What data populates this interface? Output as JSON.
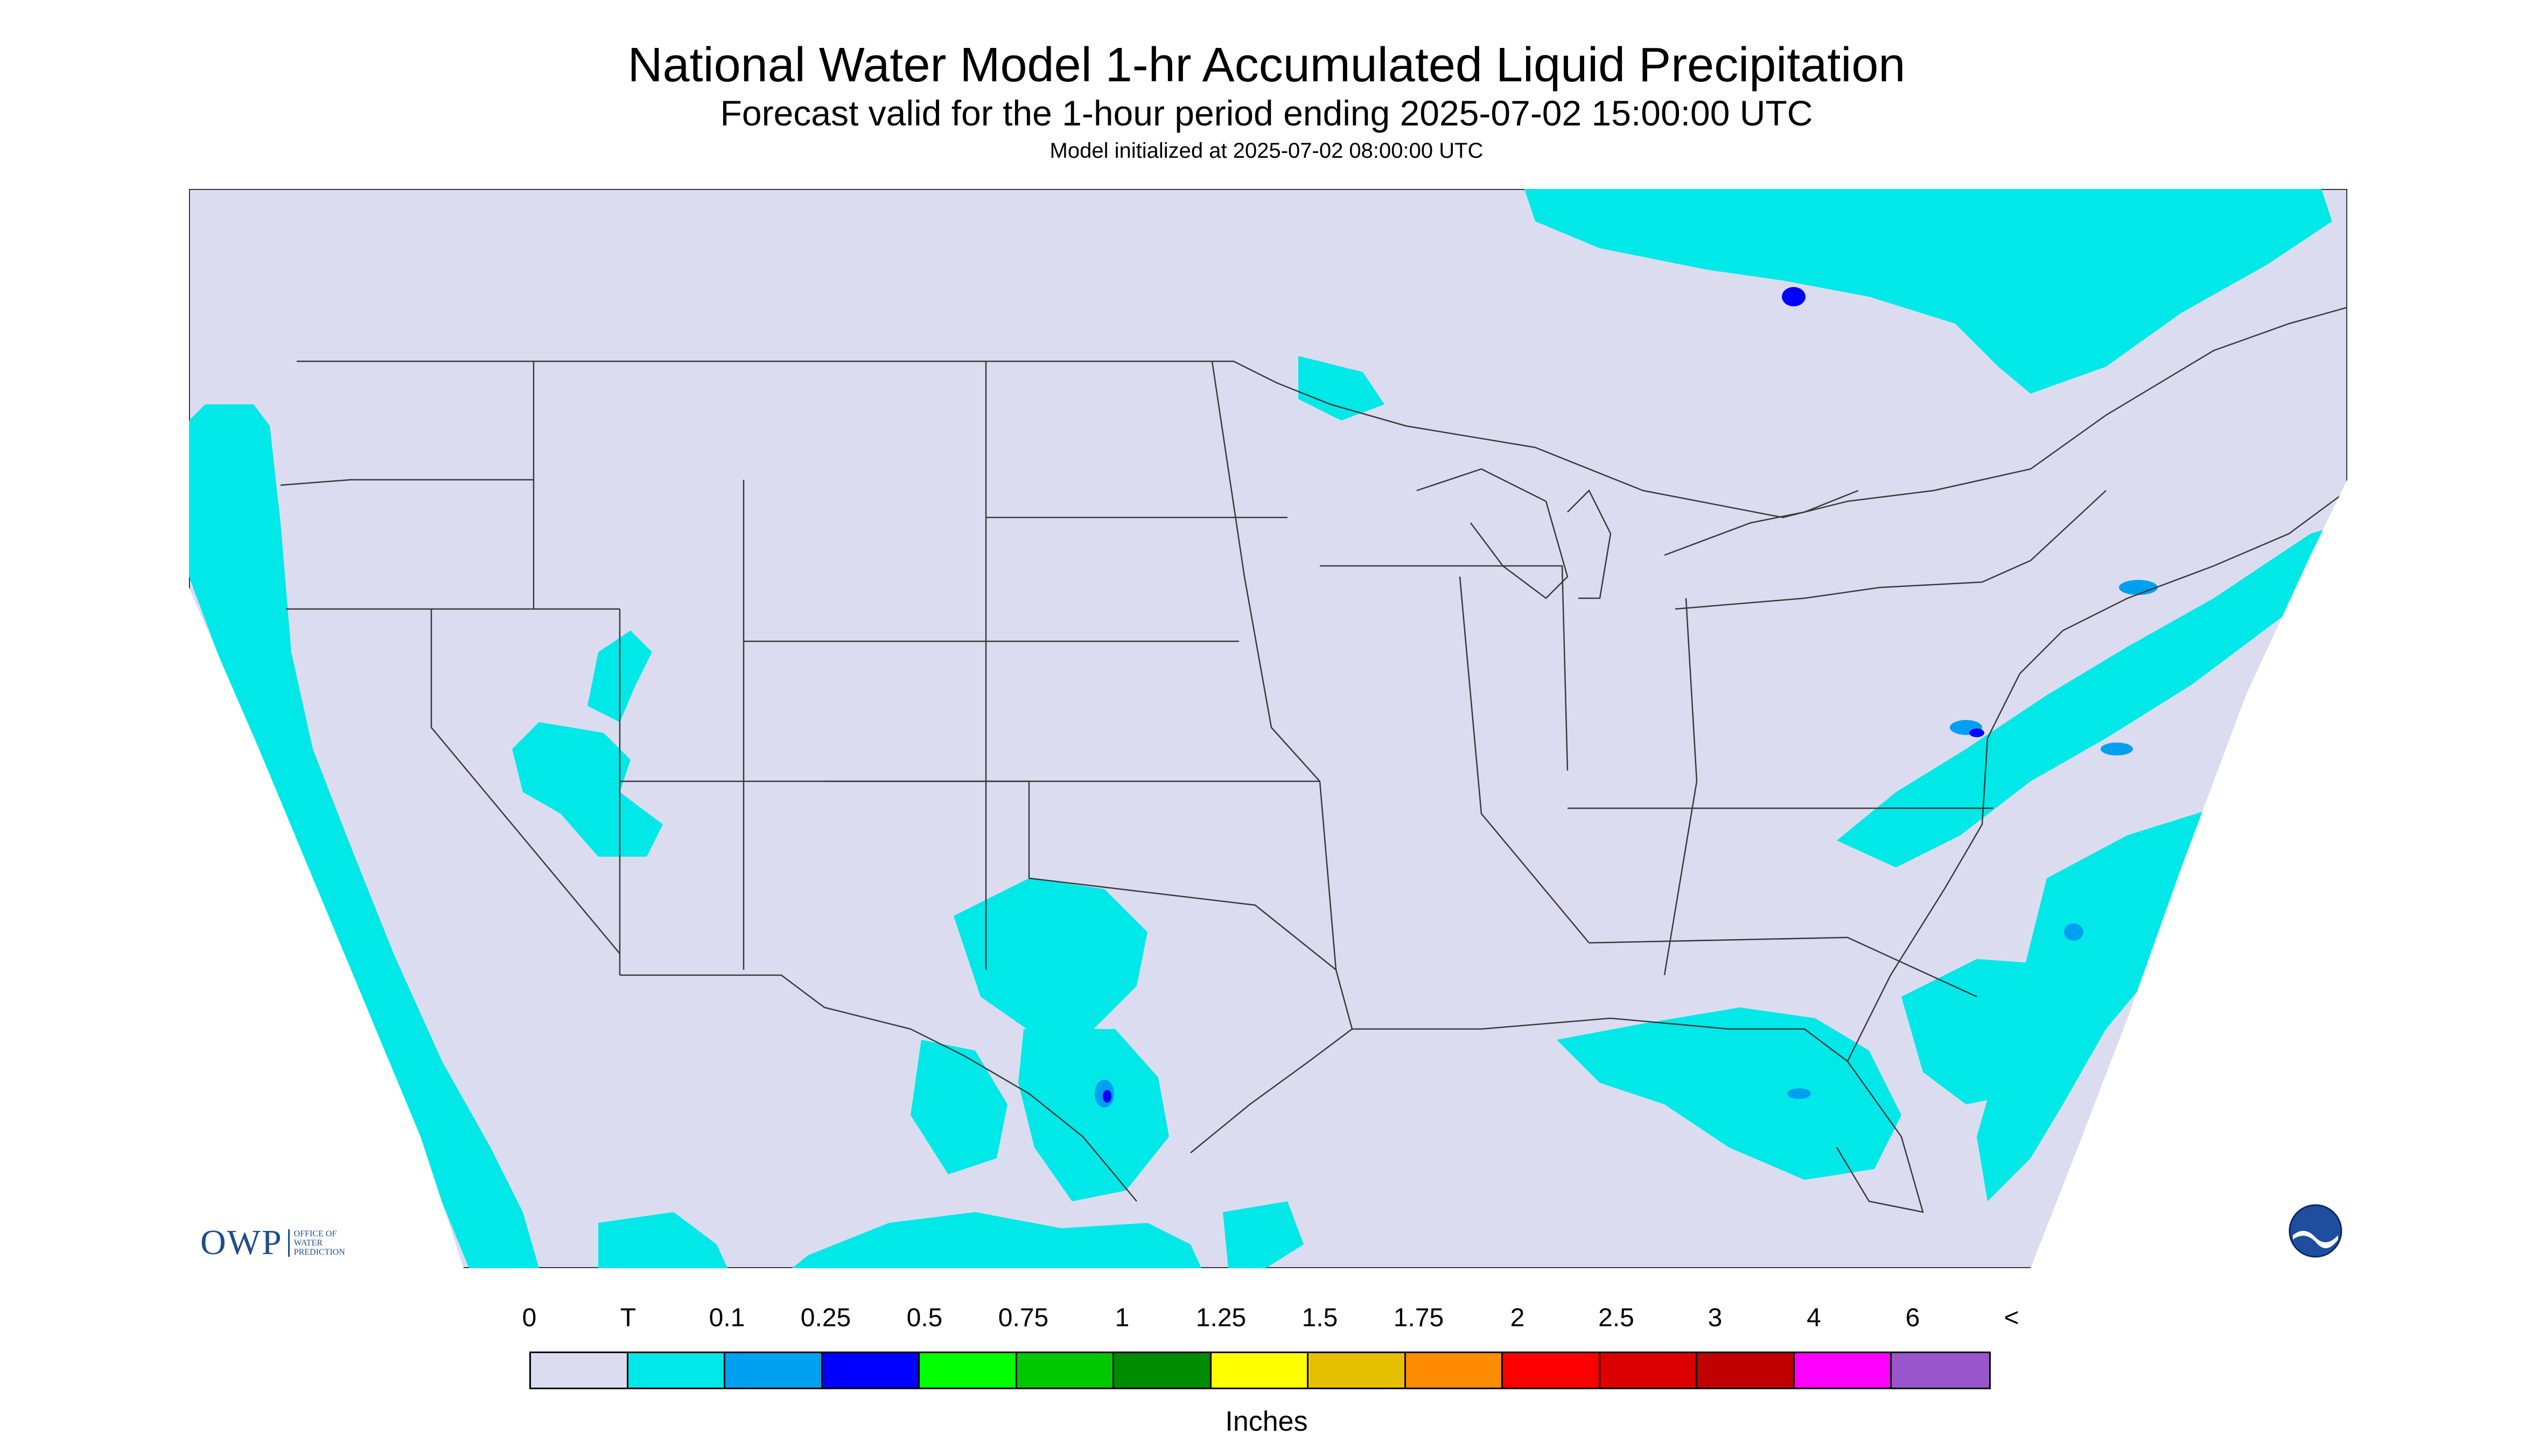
{
  "title": "National Water Model 1-hr Accumulated Liquid Precipitation",
  "subtitle": "Forecast valid for the 1-hour period ending 2025-07-02 15:00:00 UTC",
  "init_line": "Model initialized at 2025-07-02 08:00:00 UTC",
  "colors": {
    "background_field": "#dcdcf0",
    "outside_domain": "#ffffff",
    "boundary_line": "#3a3a3a",
    "trace": "#00e8e8",
    "light": "#00a0f0",
    "moderate": "#0000ff"
  },
  "logos": {
    "owp_mark": "OWP",
    "owp_text": "OFFICE OF WATER PREDICTION",
    "noaa_icon": "noaa-logo-icon"
  },
  "legend": {
    "labels": [
      "0",
      "T",
      "0.1",
      "0.25",
      "0.5",
      "0.75",
      "1",
      "1.25",
      "1.5",
      "1.75",
      "2",
      "2.5",
      "3",
      "4",
      "6",
      "<"
    ],
    "colors": [
      "#dcdcf0",
      "#00e8e8",
      "#00a0f0",
      "#0000ff",
      "#00ff00",
      "#00c800",
      "#008c00",
      "#ffff00",
      "#e6c000",
      "#ff8c00",
      "#ff0000",
      "#dc0000",
      "#c00000",
      "#ff00ff",
      "#9955cc"
    ],
    "units": "Inches"
  }
}
